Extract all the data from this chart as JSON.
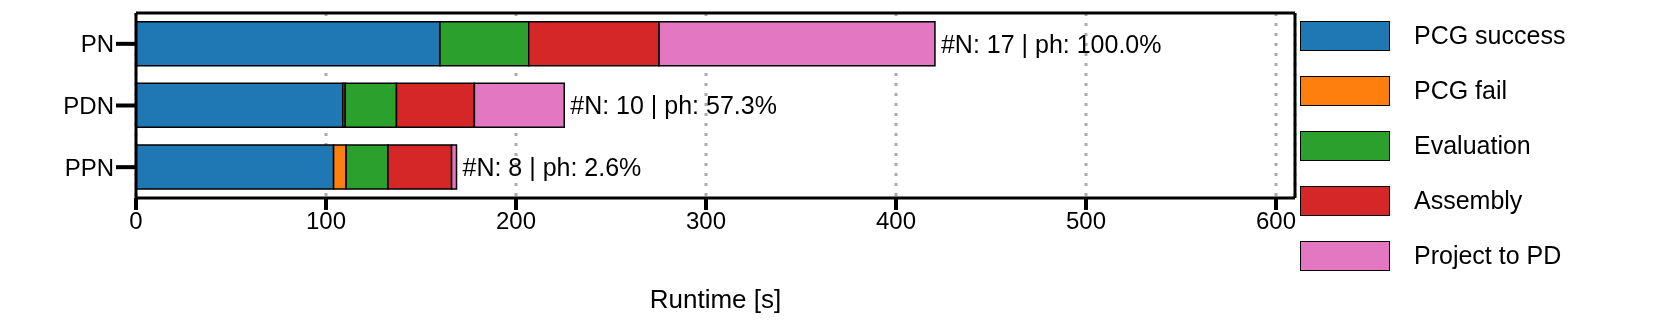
{
  "chart_data": {
    "type": "bar",
    "orientation": "horizontal",
    "stacked": true,
    "xlabel": "Runtime [s]",
    "categories": [
      "PN",
      "PDN",
      "PPN"
    ],
    "series": [
      {
        "name": "PCG success",
        "color": "#1f77b4",
        "values": [
          160,
          108.9,
          104
        ]
      },
      {
        "name": "PCG fail",
        "color": "#ff7f0e",
        "values": [
          0,
          1.2,
          6.6
        ]
      },
      {
        "name": "Evaluation",
        "color": "#2ca02c",
        "values": [
          46.7,
          27,
          22
        ]
      },
      {
        "name": "Assembly",
        "color": "#d62728",
        "values": [
          68.6,
          41,
          33.5
        ]
      },
      {
        "name": "Project to PD",
        "color": "#e377c2",
        "values": [
          145.2,
          47.3,
          2.6
        ]
      }
    ],
    "xlim": [
      0,
      610
    ],
    "xticks": [
      0,
      100,
      200,
      300,
      400,
      500,
      600
    ],
    "grid": "x",
    "legend": "right",
    "annotations": [
      {
        "text": "#N: 17 | ph: 100.0%",
        "x": 420.5,
        "y": "PN"
      },
      {
        "text": "#N: 10 | ph: 57.3%",
        "x": 225.4,
        "y": "PDN"
      },
      {
        "text": "#N: 8 | ph: 2.6%",
        "x": 168.7,
        "y": "PPN"
      }
    ]
  }
}
